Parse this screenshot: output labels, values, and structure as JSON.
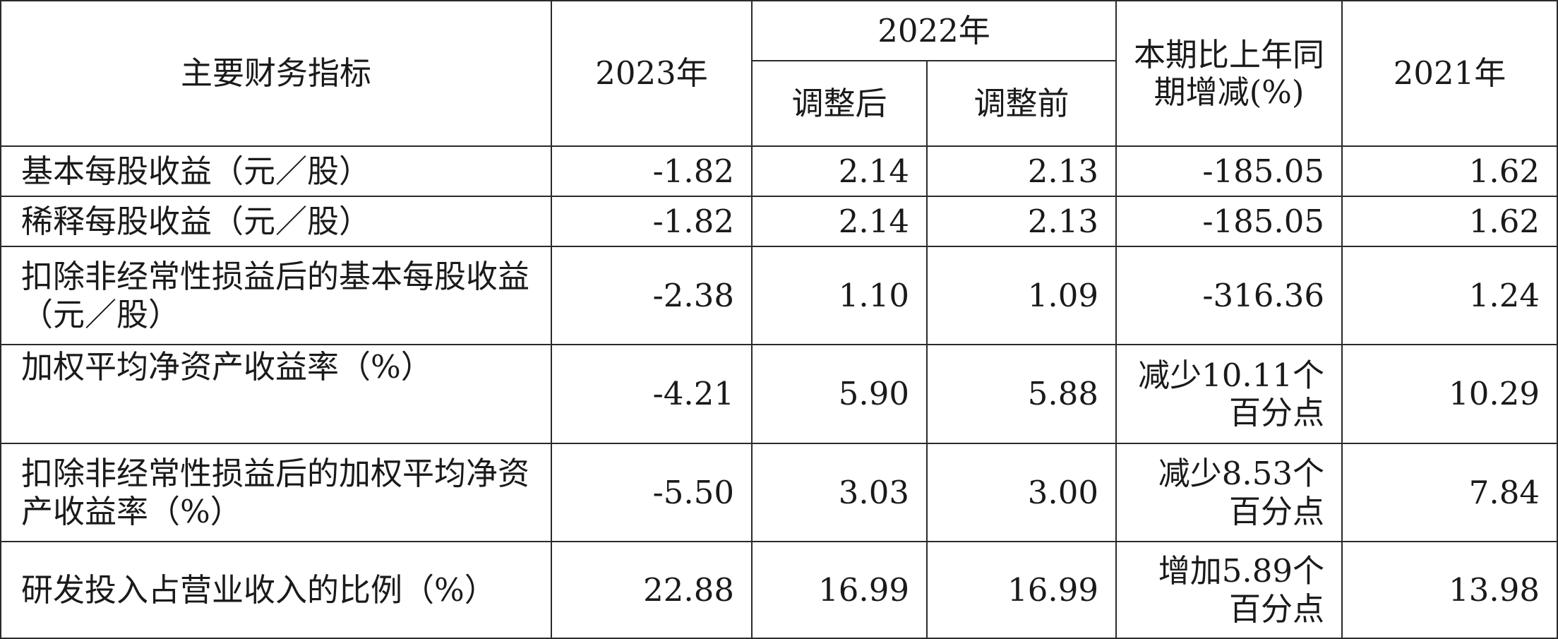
{
  "header": {
    "indicator": "主要财务指标",
    "y2023": "2023年",
    "y2022": "2022年",
    "adjusted_after": "调整后",
    "adjusted_before": "调整前",
    "change": "本期比上年同期增减(%)",
    "y2021": "2021年"
  },
  "rows": [
    {
      "label": "基本每股收益（元／股）",
      "y2023": "-1.82",
      "after": "2.14",
      "before": "2.13",
      "change": "-185.05",
      "y2021": "1.62"
    },
    {
      "label": "稀释每股收益（元／股）",
      "y2023": "-1.82",
      "after": "2.14",
      "before": "2.13",
      "change": "-185.05",
      "y2021": "1.62"
    },
    {
      "label": "扣除非经常性损益后的基本每股收益（元／股）",
      "y2023": "-2.38",
      "after": "1.10",
      "before": "1.09",
      "change": "-316.36",
      "y2021": "1.24"
    },
    {
      "label": "加权平均净资产收益率（%）",
      "y2023": "-4.21",
      "after": "5.90",
      "before": "5.88",
      "change": "减少10.11个百分点",
      "y2021": "10.29"
    },
    {
      "label": "扣除非经常性损益后的加权平均净资产收益率（%）",
      "y2023": "-5.50",
      "after": "3.03",
      "before": "3.00",
      "change": "减少8.53个百分点",
      "y2021": "7.84"
    },
    {
      "label": "研发投入占营业收入的比例（%）",
      "y2023": "22.88",
      "after": "16.99",
      "before": "16.99",
      "change": "增加5.89个百分点",
      "y2021": "13.98"
    }
  ]
}
